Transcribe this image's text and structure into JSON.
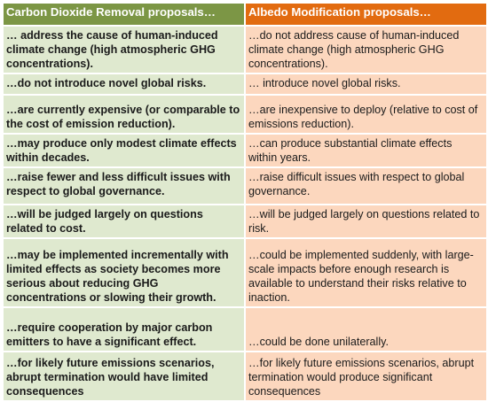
{
  "header": {
    "left": "Carbon Dioxide Removal proposals…",
    "right": "Albedo Modification proposals…"
  },
  "rows": [
    {
      "left": "… address the cause of human-induced climate change (high atmospheric GHG concentrations).",
      "right": "…do not address cause of human-induced climate change (high atmospheric GHG concentrations)."
    },
    {
      "left": "…do not introduce novel global risks.",
      "right": "… introduce novel global risks."
    },
    {
      "left": "…are currently expensive (or comparable to the cost of emission reduction).",
      "right": "…are inexpensive to deploy (relative to cost of emissions reduction)."
    },
    {
      "left": "…may produce only modest climate effects within decades.",
      "right": "…can produce substantial climate effects within years."
    },
    {
      "left": "…raise fewer and less difficult issues with respect to global governance.",
      "right": "…raise difficult issues with respect to global governance."
    },
    {
      "left": "…will be judged largely on questions related to cost.",
      "right": "…will be judged largely on questions related to risk."
    },
    {
      "left": "…may be implemented incrementally with limited effects as society becomes more serious about reducing GHG concentrations or slowing their growth.",
      "right": "…could be implemented suddenly, with large-scale impacts before enough research is available to understand their risks relative to inaction."
    },
    {
      "left": "…require cooperation by major carbon emitters to have a significant effect.",
      "right": "…could be done unilaterally."
    },
    {
      "left": "…for likely future emissions scenarios, abrupt termination would have limited consequences",
      "right": "…for likely future emissions scenarios, abrupt termination would produce significant consequences"
    }
  ]
}
